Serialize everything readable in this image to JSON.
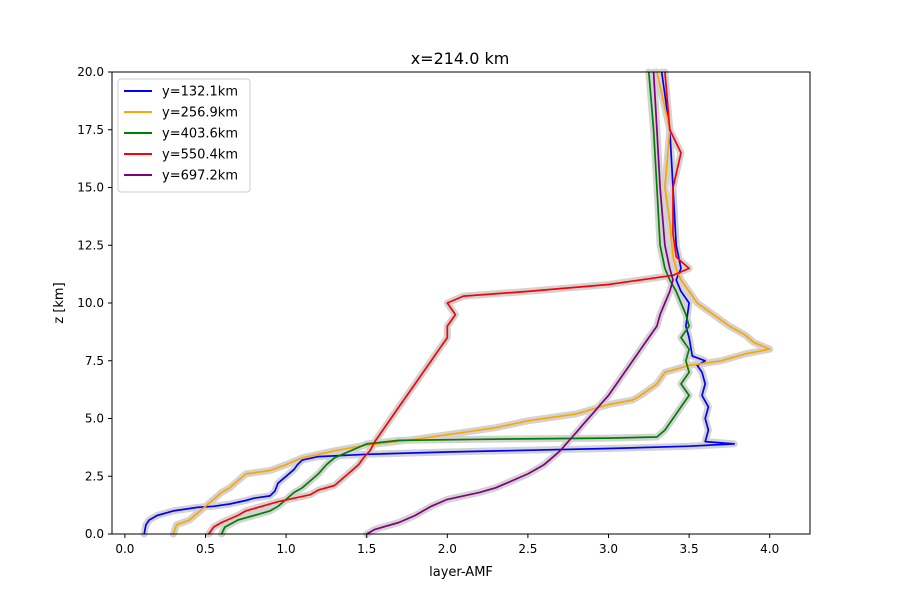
{
  "chart_data": {
    "type": "line",
    "title": "x=214.0 km",
    "xlabel": "layer-AMF",
    "ylabel": "z [km]",
    "xlim": [
      -0.08,
      4.25
    ],
    "ylim": [
      0,
      20
    ],
    "xticks": [
      "0.0",
      "0.5",
      "1.0",
      "1.5",
      "2.0",
      "2.5",
      "3.0",
      "3.5",
      "4.0"
    ],
    "yticks": [
      "0.0",
      "2.5",
      "5.0",
      "7.5",
      "10.0",
      "12.5",
      "15.0",
      "17.5",
      "20.0"
    ],
    "grid": false,
    "legend_position": "top-left",
    "uncertainty_band_color": "#d3d3d3",
    "series": [
      {
        "name": "y=132.1km",
        "color": "#0000ff",
        "points": [
          [
            0.12,
            0.0
          ],
          [
            0.13,
            0.4
          ],
          [
            0.15,
            0.6
          ],
          [
            0.2,
            0.8
          ],
          [
            0.3,
            1.0
          ],
          [
            0.45,
            1.15
          ],
          [
            0.55,
            1.2
          ],
          [
            0.65,
            1.3
          ],
          [
            0.75,
            1.45
          ],
          [
            0.8,
            1.55
          ],
          [
            0.9,
            1.65
          ],
          [
            0.93,
            1.85
          ],
          [
            0.95,
            2.2
          ],
          [
            1.0,
            2.5
          ],
          [
            1.05,
            2.8
          ],
          [
            1.07,
            3.0
          ],
          [
            1.1,
            3.2
          ],
          [
            1.2,
            3.35
          ],
          [
            1.5,
            3.45
          ],
          [
            2.0,
            3.55
          ],
          [
            3.0,
            3.7
          ],
          [
            3.5,
            3.8
          ],
          [
            3.78,
            3.9
          ],
          [
            3.6,
            4.0
          ],
          [
            3.62,
            4.5
          ],
          [
            3.6,
            5.0
          ],
          [
            3.62,
            5.5
          ],
          [
            3.58,
            6.0
          ],
          [
            3.6,
            6.5
          ],
          [
            3.58,
            7.0
          ],
          [
            3.55,
            7.3
          ],
          [
            3.6,
            7.5
          ],
          [
            3.52,
            7.7
          ],
          [
            3.5,
            8.5
          ],
          [
            3.48,
            9.0
          ],
          [
            3.5,
            10.0
          ],
          [
            3.45,
            10.5
          ],
          [
            3.42,
            11.0
          ],
          [
            3.45,
            11.5
          ],
          [
            3.42,
            12.5
          ],
          [
            3.4,
            15.0
          ],
          [
            3.38,
            17.5
          ],
          [
            3.33,
            20.0
          ]
        ]
      },
      {
        "name": "y=256.9km",
        "color": "#ffa500",
        "points": [
          [
            0.3,
            0.0
          ],
          [
            0.32,
            0.4
          ],
          [
            0.4,
            0.6
          ],
          [
            0.45,
            0.9
          ],
          [
            0.5,
            1.2
          ],
          [
            0.55,
            1.5
          ],
          [
            0.6,
            1.8
          ],
          [
            0.65,
            2.0
          ],
          [
            0.7,
            2.3
          ],
          [
            0.75,
            2.6
          ],
          [
            0.9,
            2.75
          ],
          [
            1.0,
            3.0
          ],
          [
            1.1,
            3.3
          ],
          [
            1.3,
            3.6
          ],
          [
            1.5,
            3.85
          ],
          [
            1.8,
            4.1
          ],
          [
            2.0,
            4.3
          ],
          [
            2.3,
            4.6
          ],
          [
            2.5,
            4.9
          ],
          [
            2.8,
            5.2
          ],
          [
            3.0,
            5.6
          ],
          [
            3.15,
            5.8
          ],
          [
            3.2,
            6.0
          ],
          [
            3.3,
            6.5
          ],
          [
            3.35,
            7.0
          ],
          [
            3.5,
            7.3
          ],
          [
            3.7,
            7.5
          ],
          [
            3.85,
            7.8
          ],
          [
            4.0,
            8.0
          ],
          [
            3.9,
            8.3
          ],
          [
            3.85,
            8.6
          ],
          [
            3.75,
            9.0
          ],
          [
            3.65,
            9.5
          ],
          [
            3.55,
            10.0
          ],
          [
            3.5,
            10.5
          ],
          [
            3.45,
            11.0
          ],
          [
            3.42,
            11.5
          ],
          [
            3.4,
            12.0
          ],
          [
            3.38,
            13.5
          ],
          [
            3.35,
            15.0
          ],
          [
            3.38,
            17.5
          ],
          [
            3.3,
            20.0
          ]
        ]
      },
      {
        "name": "y=403.6km",
        "color": "#008000",
        "points": [
          [
            0.6,
            0.0
          ],
          [
            0.62,
            0.3
          ],
          [
            0.7,
            0.6
          ],
          [
            0.8,
            0.8
          ],
          [
            0.9,
            1.0
          ],
          [
            0.95,
            1.2
          ],
          [
            1.0,
            1.5
          ],
          [
            1.05,
            1.8
          ],
          [
            1.1,
            2.0
          ],
          [
            1.15,
            2.3
          ],
          [
            1.2,
            2.6
          ],
          [
            1.25,
            3.0
          ],
          [
            1.3,
            3.3
          ],
          [
            1.4,
            3.6
          ],
          [
            1.5,
            3.9
          ],
          [
            1.7,
            4.05
          ],
          [
            2.2,
            4.1
          ],
          [
            3.0,
            4.15
          ],
          [
            3.3,
            4.2
          ],
          [
            3.35,
            4.5
          ],
          [
            3.4,
            5.0
          ],
          [
            3.45,
            5.5
          ],
          [
            3.5,
            6.0
          ],
          [
            3.45,
            6.5
          ],
          [
            3.5,
            7.0
          ],
          [
            3.48,
            7.5
          ],
          [
            3.5,
            8.0
          ],
          [
            3.45,
            8.5
          ],
          [
            3.5,
            9.0
          ],
          [
            3.48,
            9.5
          ],
          [
            3.45,
            10.0
          ],
          [
            3.42,
            10.5
          ],
          [
            3.38,
            11.0
          ],
          [
            3.35,
            11.5
          ],
          [
            3.32,
            12.5
          ],
          [
            3.3,
            15.0
          ],
          [
            3.28,
            17.5
          ],
          [
            3.25,
            20.0
          ]
        ]
      },
      {
        "name": "y=550.4km",
        "color": "#ff0000",
        "points": [
          [
            0.52,
            0.0
          ],
          [
            0.55,
            0.3
          ],
          [
            0.6,
            0.5
          ],
          [
            0.7,
            0.8
          ],
          [
            0.75,
            1.0
          ],
          [
            0.85,
            1.2
          ],
          [
            0.95,
            1.4
          ],
          [
            1.05,
            1.55
          ],
          [
            1.15,
            1.7
          ],
          [
            1.2,
            1.9
          ],
          [
            1.3,
            2.1
          ],
          [
            1.35,
            2.4
          ],
          [
            1.4,
            2.7
          ],
          [
            1.45,
            3.0
          ],
          [
            1.48,
            3.3
          ],
          [
            1.52,
            3.6
          ],
          [
            1.55,
            4.0
          ],
          [
            1.6,
            4.5
          ],
          [
            1.65,
            5.0
          ],
          [
            1.7,
            5.5
          ],
          [
            1.75,
            6.0
          ],
          [
            1.8,
            6.5
          ],
          [
            1.85,
            7.0
          ],
          [
            1.9,
            7.5
          ],
          [
            1.95,
            8.0
          ],
          [
            2.0,
            8.5
          ],
          [
            2.0,
            9.0
          ],
          [
            2.05,
            9.5
          ],
          [
            2.0,
            10.0
          ],
          [
            2.1,
            10.3
          ],
          [
            2.5,
            10.5
          ],
          [
            3.0,
            10.8
          ],
          [
            3.4,
            11.2
          ],
          [
            3.5,
            11.5
          ],
          [
            3.45,
            11.8
          ],
          [
            3.42,
            12.0
          ],
          [
            3.4,
            13.0
          ],
          [
            3.4,
            15.0
          ],
          [
            3.45,
            16.5
          ],
          [
            3.38,
            17.5
          ],
          [
            3.35,
            20.0
          ]
        ]
      },
      {
        "name": "y=697.2km",
        "color": "#800080",
        "points": [
          [
            1.5,
            0.0
          ],
          [
            1.55,
            0.2
          ],
          [
            1.7,
            0.5
          ],
          [
            1.8,
            0.8
          ],
          [
            1.85,
            1.0
          ],
          [
            1.9,
            1.2
          ],
          [
            2.0,
            1.5
          ],
          [
            2.2,
            1.8
          ],
          [
            2.3,
            2.0
          ],
          [
            2.4,
            2.3
          ],
          [
            2.5,
            2.6
          ],
          [
            2.6,
            3.0
          ],
          [
            2.65,
            3.3
          ],
          [
            2.7,
            3.6
          ],
          [
            2.75,
            4.0
          ],
          [
            2.8,
            4.4
          ],
          [
            2.85,
            4.8
          ],
          [
            2.9,
            5.2
          ],
          [
            2.95,
            5.6
          ],
          [
            3.0,
            6.0
          ],
          [
            3.05,
            6.5
          ],
          [
            3.1,
            7.0
          ],
          [
            3.15,
            7.5
          ],
          [
            3.2,
            8.0
          ],
          [
            3.25,
            8.5
          ],
          [
            3.3,
            9.0
          ],
          [
            3.32,
            9.5
          ],
          [
            3.35,
            10.0
          ],
          [
            3.38,
            10.5
          ],
          [
            3.4,
            11.0
          ],
          [
            3.38,
            11.5
          ],
          [
            3.35,
            12.5
          ],
          [
            3.32,
            15.0
          ],
          [
            3.3,
            17.5
          ],
          [
            3.28,
            20.0
          ]
        ]
      }
    ]
  }
}
